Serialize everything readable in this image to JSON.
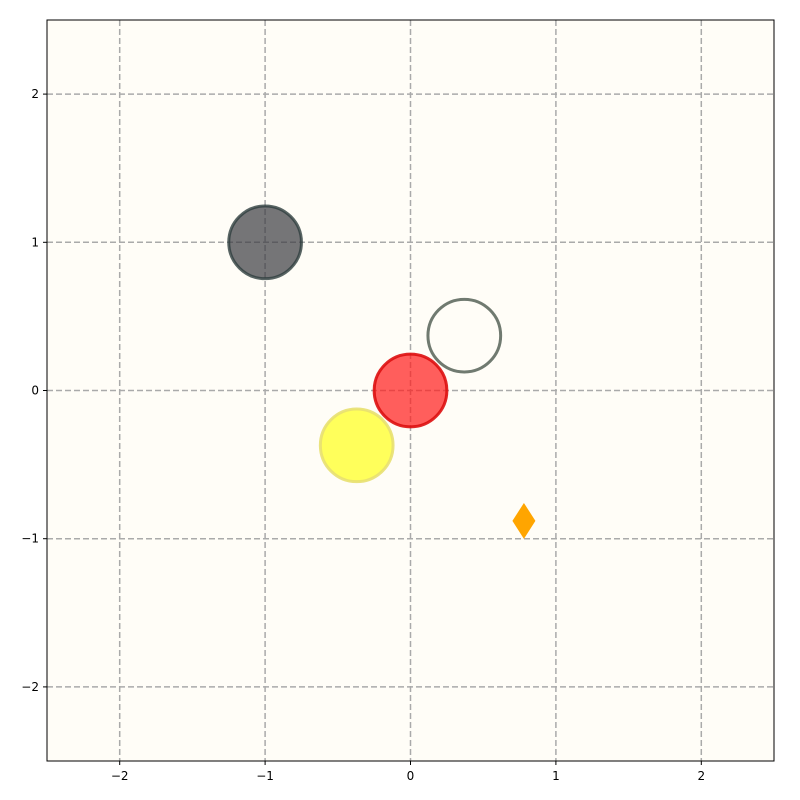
{
  "chart_data": {
    "type": "scatter",
    "title": "",
    "xlabel": "",
    "ylabel": "",
    "xlim": [
      -2.5,
      2.5
    ],
    "ylim": [
      -2.5,
      2.5
    ],
    "grid": true,
    "grid_style": "dashed",
    "background_color": "#fffdf7",
    "x_ticks": [
      {
        "value": -2,
        "label": "−2"
      },
      {
        "value": -1,
        "label": "−1"
      },
      {
        "value": 0,
        "label": "0"
      },
      {
        "value": 1,
        "label": "1"
      },
      {
        "value": 2,
        "label": "2"
      }
    ],
    "y_ticks": [
      {
        "value": -2,
        "label": "−2"
      },
      {
        "value": -1,
        "label": "−1"
      },
      {
        "value": 0,
        "label": "0"
      },
      {
        "value": 1,
        "label": "1"
      },
      {
        "value": 2,
        "label": "2"
      }
    ],
    "points": [
      {
        "name": "dark-gray-circle",
        "shape": "circle",
        "x": -1.0,
        "y": 1.0,
        "r": 0.25,
        "fill": "#3a3a40",
        "fill_opacity": 0.7,
        "stroke": "#2f3f3f",
        "stroke_opacity": 0.8
      },
      {
        "name": "white-circle",
        "shape": "circle",
        "x": 0.37,
        "y": 0.37,
        "r": 0.25,
        "fill": "#fffdf7",
        "fill_opacity": 1.0,
        "stroke": "#707a70",
        "stroke_opacity": 1.0
      },
      {
        "name": "red-circle",
        "shape": "circle",
        "x": 0.0,
        "y": 0.0,
        "r": 0.25,
        "fill": "#ff2020",
        "fill_opacity": 0.72,
        "stroke": "#dd1010",
        "stroke_opacity": 0.9
      },
      {
        "name": "yellow-circle",
        "shape": "circle",
        "x": -0.37,
        "y": -0.37,
        "r": 0.25,
        "fill": "#ffff40",
        "fill_opacity": 0.85,
        "stroke": "#e8e070",
        "stroke_opacity": 0.9
      },
      {
        "name": "orange-diamond",
        "shape": "diamond",
        "x": 0.78,
        "y": -0.88,
        "rx": 0.075,
        "ry": 0.115,
        "fill": "#ffa500",
        "fill_opacity": 1.0,
        "stroke": "#ffa500",
        "stroke_opacity": 1.0
      }
    ]
  }
}
